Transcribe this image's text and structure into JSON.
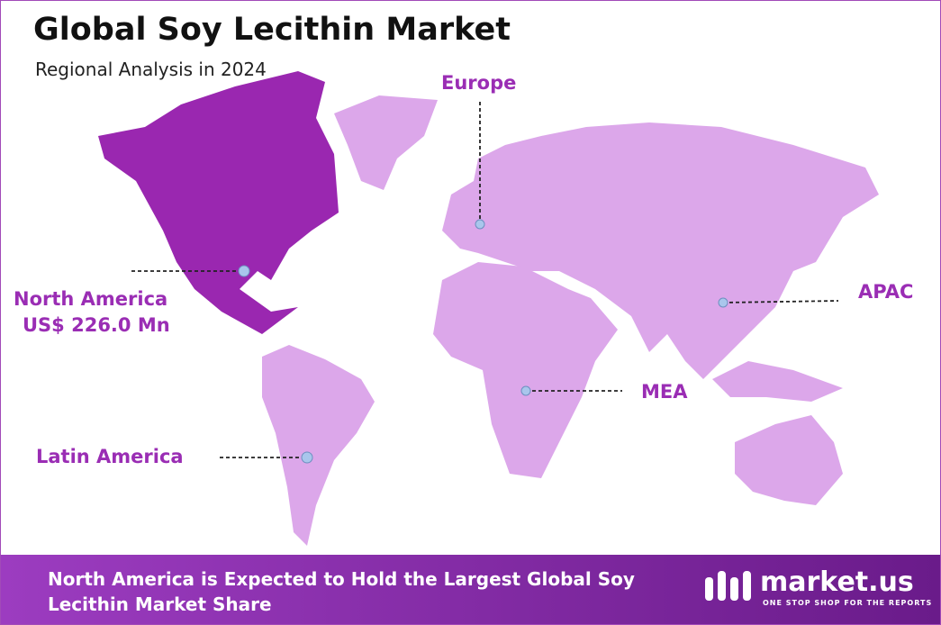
{
  "header": {
    "title": "Global Soy Lecithin Market",
    "subtitle": "Regional Analysis in 2024"
  },
  "regions": {
    "europe": "Europe",
    "apac": "APAC",
    "mea": "MEA",
    "latin_america": "Latin America",
    "north_america": {
      "label": "North America",
      "value": "US$ 226.0 Mn"
    }
  },
  "footer": {
    "text": "North America is Expected to Hold the Largest Global Soy Lecithin Market Share"
  },
  "logo": {
    "name": "market.us",
    "tagline": "ONE STOP SHOP FOR THE REPORTS"
  }
}
